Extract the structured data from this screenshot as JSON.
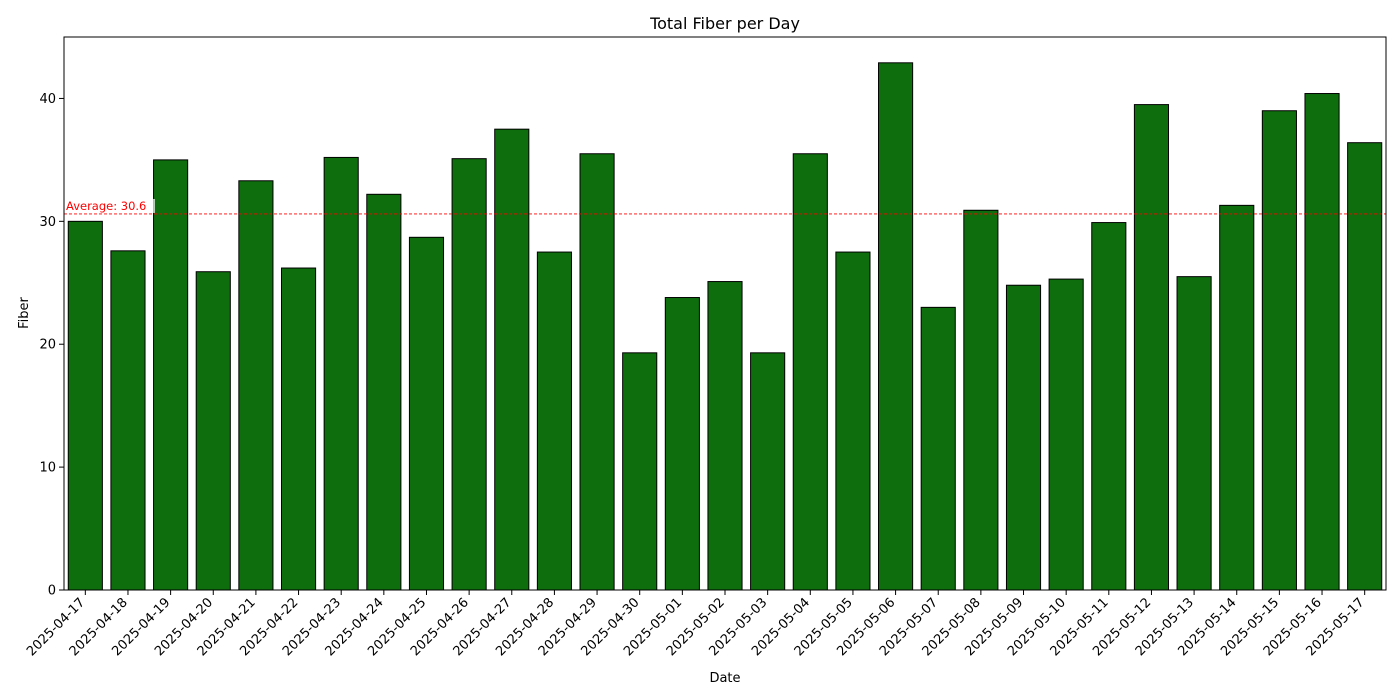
{
  "chart_data": {
    "type": "bar",
    "title": "Total Fiber per Day",
    "xlabel": "Date",
    "ylabel": "Fiber",
    "ylim": [
      0,
      45
    ],
    "yticks": [
      0,
      10,
      20,
      30,
      40
    ],
    "grid": false,
    "categories": [
      "2025-04-17",
      "2025-04-18",
      "2025-04-19",
      "2025-04-20",
      "2025-04-21",
      "2025-04-22",
      "2025-04-23",
      "2025-04-24",
      "2025-04-25",
      "2025-04-26",
      "2025-04-27",
      "2025-04-28",
      "2025-04-29",
      "2025-04-30",
      "2025-05-01",
      "2025-05-02",
      "2025-05-03",
      "2025-05-04",
      "2025-05-05",
      "2025-05-06",
      "2025-05-07",
      "2025-05-08",
      "2025-05-09",
      "2025-05-10",
      "2025-05-11",
      "2025-05-12",
      "2025-05-13",
      "2025-05-14",
      "2025-05-15",
      "2025-05-16",
      "2025-05-17"
    ],
    "values": [
      30.0,
      27.6,
      35.0,
      25.9,
      33.3,
      26.2,
      35.2,
      32.2,
      28.7,
      35.1,
      37.5,
      27.5,
      35.5,
      19.3,
      23.8,
      25.1,
      19.3,
      35.5,
      27.5,
      42.9,
      23.0,
      30.9,
      24.8,
      25.3,
      29.9,
      39.5,
      25.5,
      31.3,
      39.0,
      40.4,
      36.4
    ],
    "bar_color": "#0e6e0e",
    "bar_edge_color": "#000000",
    "average": {
      "value": 30.6,
      "label": "Average: 30.6",
      "color": "#ff0000"
    }
  }
}
